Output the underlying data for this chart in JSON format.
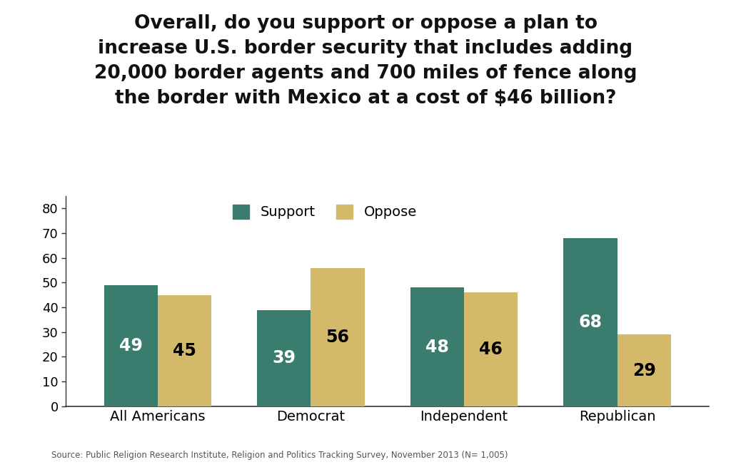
{
  "title": "Overall, do you support or oppose a plan to\nincrease U.S. border security that includes adding\n20,000 border agents and 700 miles of fence along\nthe border with Mexico at a cost of $46 billion?",
  "categories": [
    "All Americans",
    "Democrat",
    "Independent",
    "Republican"
  ],
  "support_values": [
    49,
    39,
    48,
    68
  ],
  "oppose_values": [
    45,
    56,
    46,
    29
  ],
  "support_color": "#3a7d6e",
  "oppose_color": "#d4b96a",
  "support_label": "Support",
  "oppose_label": "Oppose",
  "ylabel_ticks": [
    0,
    10,
    20,
    30,
    40,
    50,
    60,
    70,
    80
  ],
  "ylim": [
    0,
    85
  ],
  "source_text": "Source: Public Religion Research Institute, Religion and Politics Tracking Survey, November 2013 (N= 1,005)",
  "bar_width": 0.35,
  "title_fontsize": 19,
  "tick_fontsize": 13,
  "value_fontsize_support": 17,
  "value_fontsize_oppose": 17,
  "background_color": "#ffffff"
}
